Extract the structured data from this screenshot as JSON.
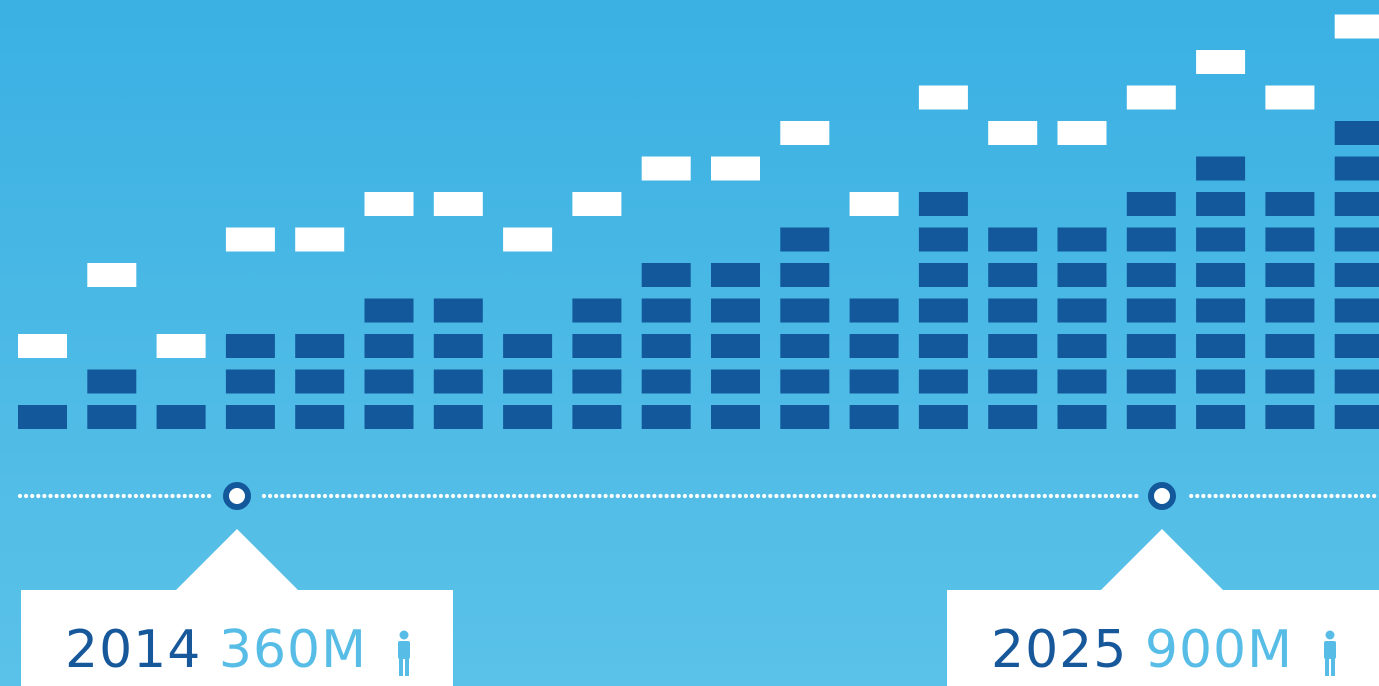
{
  "chart_data": {
    "type": "bar",
    "categories": [
      "",
      "",
      "",
      "",
      "",
      "",
      "",
      "",
      "",
      "",
      "",
      "",
      "",
      "",
      "",
      "",
      "",
      "",
      "",
      ""
    ],
    "series": [
      {
        "values": [
          1,
          2,
          1,
          3,
          3,
          4,
          4,
          3,
          4,
          5,
          5,
          6,
          4,
          7,
          6,
          6,
          7,
          8,
          7,
          9
        ]
      }
    ],
    "markers": [
      2,
      4,
      2,
      5,
      5,
      6,
      6,
      5,
      6,
      7,
      7,
      8,
      6,
      9,
      8,
      8,
      9,
      10,
      9,
      11
    ],
    "ylim": [
      0,
      12
    ],
    "grid": false,
    "colors": {
      "bar": "#12589b",
      "marker": "#ffffff",
      "dots": "#ffffff",
      "ring": "#12589b"
    }
  },
  "callouts": [
    {
      "year": "2014",
      "value": "360M",
      "icon": "person-icon"
    },
    {
      "year": "2025",
      "value": "900M",
      "icon": "person-icon"
    }
  ]
}
